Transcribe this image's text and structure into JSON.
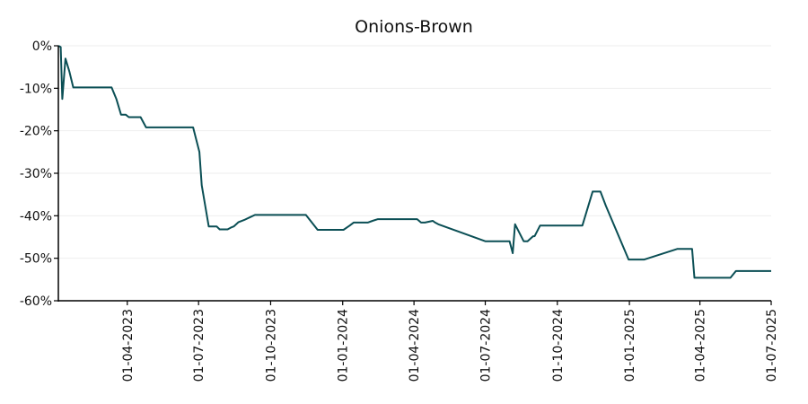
{
  "chart_data": {
    "type": "line",
    "title": "Onions-Brown",
    "xlabel": "",
    "ylabel": "",
    "ylim": [
      -60,
      0
    ],
    "xlim": [
      "2023-01-03",
      "2025-07-01"
    ],
    "grid": "horizontal",
    "line_color": "#0b4f55",
    "y_ticks": [
      0,
      -10,
      -20,
      -30,
      -40,
      -50,
      -60
    ],
    "y_tick_labels": [
      "0%",
      "-10%",
      "-20%",
      "-30%",
      "-40%",
      "-50%",
      "-60%"
    ],
    "x_ticks": [
      "2023-04-01",
      "2023-07-01",
      "2023-10-01",
      "2024-01-01",
      "2024-04-01",
      "2024-07-01",
      "2024-10-01",
      "2025-01-01",
      "2025-04-01",
      "2025-07-01"
    ],
    "x_tick_labels": [
      "01-04-2023",
      "01-07-2023",
      "01-10-2023",
      "01-01-2024",
      "01-04-2024",
      "01-07-2024",
      "01-10-2024",
      "01-01-2025",
      "01-04-2025",
      "01-07-2025"
    ],
    "series": [
      {
        "x": [
          "2023-01-03",
          "2023-01-06",
          "2023-01-08",
          "2023-01-12",
          "2023-01-17",
          "2023-01-22",
          "2023-01-27",
          "2023-03-12",
          "2023-03-18",
          "2023-03-24",
          "2023-03-30",
          "2023-04-03",
          "2023-04-09",
          "2023-04-18",
          "2023-04-25",
          "2023-06-24",
          "2023-07-02",
          "2023-07-05",
          "2023-07-14",
          "2023-07-24",
          "2023-07-28",
          "2023-08-01",
          "2023-08-07",
          "2023-08-11",
          "2023-08-15",
          "2023-08-21",
          "2023-08-28",
          "2023-09-05",
          "2023-09-11",
          "2023-10-03",
          "2023-10-05",
          "2023-11-15",
          "2023-11-30",
          "2023-12-31",
          "2024-01-02",
          "2024-01-10",
          "2024-01-15",
          "2024-02-02",
          "2024-02-08",
          "2024-02-15",
          "2024-04-05",
          "2024-04-10",
          "2024-04-15",
          "2024-04-25",
          "2024-04-28",
          "2024-05-02",
          "2024-07-01",
          "2024-08-01",
          "2024-08-05",
          "2024-08-08",
          "2024-08-19",
          "2024-08-24",
          "2024-08-31",
          "2024-09-02",
          "2024-09-09",
          "2024-09-14",
          "2024-10-09",
          "2024-11-02",
          "2024-11-15",
          "2024-11-20",
          "2024-11-25",
          "2024-12-02",
          "2024-12-31",
          "2025-01-08",
          "2025-01-20",
          "2025-03-03",
          "2025-03-22",
          "2025-03-25",
          "2025-05-10",
          "2025-05-17",
          "2025-05-22",
          "2025-07-01"
        ],
        "y": [
          0,
          -0.3,
          -12.5,
          -3,
          -6,
          -9.8,
          -9.8,
          -9.8,
          -12.5,
          -16.2,
          -16.2,
          -16.8,
          -16.8,
          -16.8,
          -19.2,
          -19.2,
          -25,
          -32.8,
          -42.5,
          -42.5,
          -43.2,
          -43.2,
          -43.2,
          -42.8,
          -42.5,
          -41.5,
          -41,
          -40.3,
          -39.8,
          -39.8,
          -39.8,
          -39.8,
          -43.3,
          -43.3,
          -43.3,
          -42.3,
          -41.6,
          -41.6,
          -41.2,
          -40.8,
          -40.8,
          -41.6,
          -41.6,
          -41.2,
          -41.6,
          -42,
          -46,
          -46,
          -48.8,
          -42,
          -46,
          -46,
          -44.8,
          -44.8,
          -42.3,
          -42.3,
          -42.3,
          -42.3,
          -34.3,
          -34.3,
          -34.3,
          -37.7,
          -50.3,
          -50.3,
          -50.3,
          -47.8,
          -47.8,
          -54.6,
          -54.6,
          -53,
          -53,
          -53
        ]
      }
    ]
  }
}
